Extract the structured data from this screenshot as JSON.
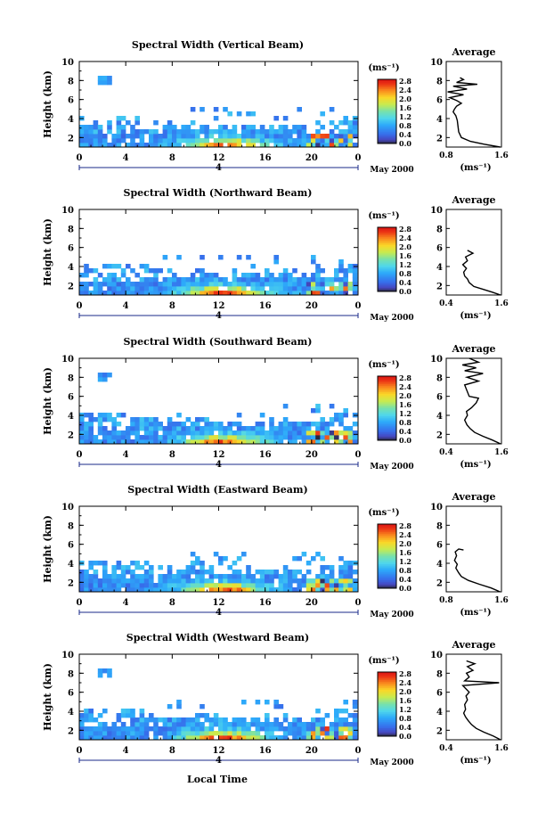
{
  "figure": {
    "xlabel": "Local Time",
    "date_label": "May 2000",
    "day_label": "4",
    "colorbar_unit": "(ms⁻¹)",
    "profile_title": "Average",
    "profile_xlabel": "(ms⁻¹)",
    "height_label": "Height (km)"
  },
  "chart_data": [
    {
      "type": "heatmap",
      "title": "Spectral Width (Vertical Beam)",
      "xlabel": "Local Time",
      "ylabel": "Height (km)",
      "xlim": [
        0,
        24
      ],
      "ylim": [
        1,
        10
      ],
      "xticks": [
        "0",
        "4",
        "8",
        "12",
        "16",
        "20",
        "0"
      ],
      "yticks": [
        "2",
        "4",
        "6",
        "8",
        "10"
      ],
      "colorbar": {
        "label": "(ms⁻¹)",
        "range": [
          0.0,
          2.8
        ],
        "ticks": [
          "2.8",
          "2.4",
          "2.0",
          "1.6",
          "1.2",
          "0.8",
          "0.4",
          "0.0"
        ]
      },
      "profile": {
        "title": "Average",
        "xlabel": "(ms⁻¹)",
        "xlim": [
          0.8,
          1.6
        ],
        "xticks": [
          "0.8",
          "1.6"
        ],
        "ylim": [
          1,
          10
        ],
        "points": [
          [
            1.58,
            1.0
          ],
          [
            1.35,
            1.3
          ],
          [
            1.15,
            1.6
          ],
          [
            1.02,
            2.0
          ],
          [
            0.98,
            2.6
          ],
          [
            0.97,
            3.2
          ],
          [
            0.96,
            3.8
          ],
          [
            0.94,
            4.3
          ],
          [
            0.9,
            4.7
          ],
          [
            0.92,
            5.0
          ],
          [
            0.95,
            5.3
          ],
          [
            1.02,
            5.6
          ],
          [
            0.95,
            5.9
          ],
          [
            0.85,
            6.2
          ],
          [
            1.05,
            6.5
          ],
          [
            0.82,
            6.8
          ],
          [
            1.1,
            7.1
          ],
          [
            0.9,
            7.4
          ],
          [
            1.25,
            7.6
          ],
          [
            0.95,
            7.8
          ],
          [
            1.05,
            8.1
          ],
          [
            1.0,
            8.3
          ]
        ]
      }
    },
    {
      "type": "heatmap",
      "title": "Spectral Width (Northward Beam)",
      "xlabel": "Local Time",
      "ylabel": "Height (km)",
      "xlim": [
        0,
        24
      ],
      "ylim": [
        1,
        10
      ],
      "xticks": [
        "0",
        "4",
        "8",
        "12",
        "16",
        "20",
        "0"
      ],
      "yticks": [
        "2",
        "4",
        "6",
        "8",
        "10"
      ],
      "colorbar": {
        "label": "(ms⁻¹)",
        "range": [
          0.0,
          2.8
        ],
        "ticks": [
          "2.8",
          "2.4",
          "2.0",
          "1.6",
          "1.2",
          "0.8",
          "0.4",
          "0.0"
        ]
      },
      "profile": {
        "title": "Average",
        "xlabel": "(ms⁻¹)",
        "xlim": [
          0.4,
          1.6
        ],
        "xticks": [
          "0.4",
          "1.6"
        ],
        "ylim": [
          1,
          10
        ],
        "points": [
          [
            1.58,
            1.0
          ],
          [
            1.4,
            1.3
          ],
          [
            1.2,
            1.6
          ],
          [
            1.0,
            1.9
          ],
          [
            0.9,
            2.3
          ],
          [
            0.86,
            2.7
          ],
          [
            0.8,
            3.0
          ],
          [
            0.78,
            3.4
          ],
          [
            0.84,
            3.8
          ],
          [
            0.76,
            4.2
          ],
          [
            0.86,
            4.6
          ],
          [
            0.82,
            5.0
          ],
          [
            0.98,
            5.4
          ],
          [
            0.86,
            5.7
          ]
        ]
      }
    },
    {
      "type": "heatmap",
      "title": "Spectral Width (Southward Beam)",
      "xlabel": "Local Time",
      "ylabel": "Height (km)",
      "xlim": [
        0,
        24
      ],
      "ylim": [
        1,
        10
      ],
      "xticks": [
        "0",
        "4",
        "8",
        "12",
        "16",
        "20",
        "0"
      ],
      "yticks": [
        "2",
        "4",
        "6",
        "8",
        "10"
      ],
      "colorbar": {
        "label": "(ms⁻¹)",
        "range": [
          0.0,
          2.8
        ],
        "ticks": [
          "2.8",
          "2.4",
          "2.0",
          "1.6",
          "1.2",
          "0.8",
          "0.4",
          "0.0"
        ]
      },
      "profile": {
        "title": "Average",
        "xlabel": "(ms⁻¹)",
        "xlim": [
          0.4,
          1.6
        ],
        "xticks": [
          "0.4",
          "1.6"
        ],
        "ylim": [
          1,
          10
        ],
        "points": [
          [
            1.58,
            1.0
          ],
          [
            1.4,
            1.4
          ],
          [
            1.2,
            1.8
          ],
          [
            1.02,
            2.2
          ],
          [
            0.92,
            2.6
          ],
          [
            0.85,
            3.0
          ],
          [
            0.8,
            3.5
          ],
          [
            0.86,
            4.0
          ],
          [
            0.84,
            4.4
          ],
          [
            0.95,
            4.8
          ],
          [
            1.05,
            5.3
          ],
          [
            1.1,
            5.8
          ],
          [
            0.9,
            6.0
          ],
          [
            0.8,
            7.2
          ],
          [
            1.1,
            7.6
          ],
          [
            0.85,
            8.0
          ],
          [
            1.2,
            8.4
          ],
          [
            0.8,
            8.7
          ],
          [
            1.05,
            9.0
          ],
          [
            0.75,
            9.3
          ],
          [
            1.1,
            9.6
          ],
          [
            0.9,
            10.0
          ]
        ]
      }
    },
    {
      "type": "heatmap",
      "title": "Spectral Width (Eastward Beam)",
      "xlabel": "Local Time",
      "ylabel": "Height (km)",
      "xlim": [
        0,
        24
      ],
      "ylim": [
        1,
        10
      ],
      "xticks": [
        "0",
        "4",
        "8",
        "12",
        "16",
        "20",
        "0"
      ],
      "yticks": [
        "2",
        "4",
        "6",
        "8",
        "10"
      ],
      "colorbar": {
        "label": "(ms⁻¹)",
        "range": [
          0.0,
          2.8
        ],
        "ticks": [
          "2.8",
          "2.4",
          "2.0",
          "1.6",
          "1.2",
          "0.8",
          "0.4",
          "0.0"
        ]
      },
      "profile": {
        "title": "Average",
        "xlabel": "(ms⁻¹)",
        "xlim": [
          0.8,
          1.6
        ],
        "xticks": [
          "0.8",
          "1.6"
        ],
        "ylim": [
          1,
          10
        ],
        "points": [
          [
            1.58,
            1.0
          ],
          [
            1.45,
            1.4
          ],
          [
            1.28,
            1.8
          ],
          [
            1.12,
            2.2
          ],
          [
            1.02,
            2.6
          ],
          [
            0.98,
            3.0
          ],
          [
            0.94,
            3.5
          ],
          [
            0.96,
            3.9
          ],
          [
            0.92,
            4.3
          ],
          [
            0.95,
            4.8
          ],
          [
            0.93,
            5.2
          ],
          [
            0.98,
            5.5
          ],
          [
            1.05,
            5.4
          ]
        ]
      }
    },
    {
      "type": "heatmap",
      "title": "Spectral Width (Westward Beam)",
      "xlabel": "Local Time",
      "ylabel": "Height (km)",
      "xlim": [
        0,
        24
      ],
      "ylim": [
        1,
        10
      ],
      "xticks": [
        "0",
        "4",
        "8",
        "12",
        "16",
        "20",
        "0"
      ],
      "yticks": [
        "2",
        "4",
        "6",
        "8",
        "10"
      ],
      "colorbar": {
        "label": "(ms⁻¹)",
        "range": [
          0.0,
          2.8
        ],
        "ticks": [
          "2.8",
          "2.4",
          "2.0",
          "1.6",
          "1.2",
          "0.8",
          "0.4",
          "0.0"
        ]
      },
      "profile": {
        "title": "Average",
        "xlabel": "(ms⁻¹)",
        "xlim": [
          0.4,
          1.6
        ],
        "xticks": [
          "0.4",
          "1.6"
        ],
        "ylim": [
          1,
          10
        ],
        "points": [
          [
            1.58,
            1.0
          ],
          [
            1.42,
            1.4
          ],
          [
            1.22,
            1.8
          ],
          [
            1.05,
            2.2
          ],
          [
            0.95,
            2.6
          ],
          [
            0.88,
            3.0
          ],
          [
            0.82,
            3.4
          ],
          [
            0.78,
            3.8
          ],
          [
            0.82,
            4.2
          ],
          [
            0.8,
            4.7
          ],
          [
            0.86,
            5.2
          ],
          [
            0.83,
            5.6
          ],
          [
            0.9,
            6.0
          ],
          [
            0.82,
            6.4
          ],
          [
            0.76,
            6.7
          ],
          [
            1.55,
            7.0
          ],
          [
            0.8,
            7.2
          ],
          [
            0.9,
            7.6
          ],
          [
            0.84,
            8.0
          ],
          [
            0.98,
            8.3
          ],
          [
            0.86,
            8.7
          ],
          [
            1.02,
            9.0
          ],
          [
            0.84,
            9.3
          ]
        ]
      }
    }
  ]
}
